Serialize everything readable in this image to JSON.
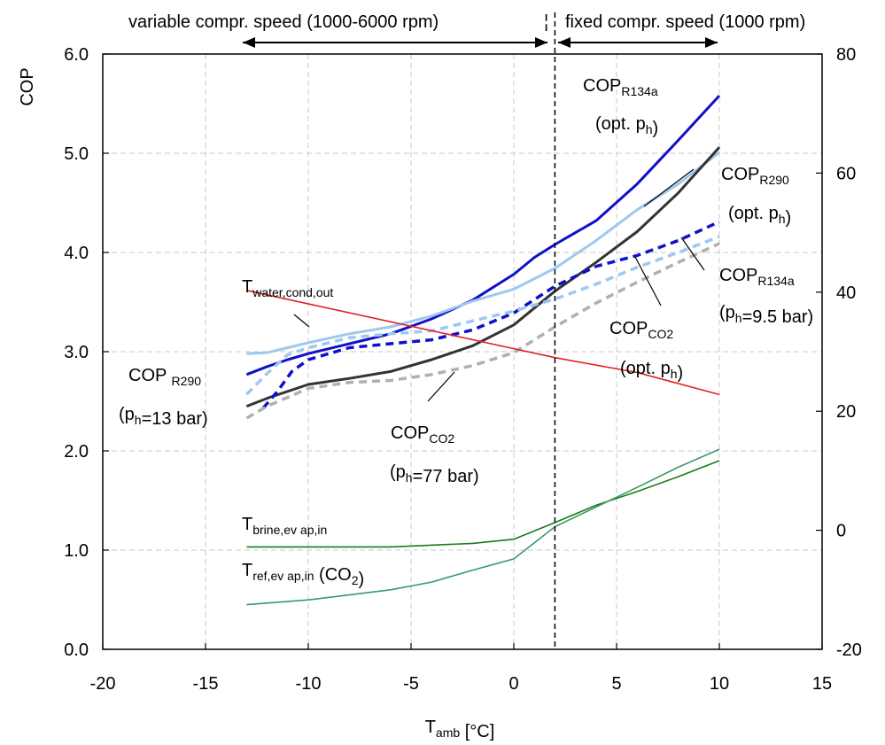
{
  "chart_data": {
    "type": "line",
    "title": "",
    "xlabel": "T",
    "xlabel_sub": "amb",
    "xlabel_unit": " [°C]",
    "ylabel": "COP",
    "y2label": "",
    "xlim": [
      -20,
      15
    ],
    "ylim": [
      0,
      6
    ],
    "y2lim": [
      -20,
      80
    ],
    "grid": true,
    "xticks": [
      "-20",
      "-15",
      "-10",
      "-5",
      "0",
      "5",
      "10",
      "15"
    ],
    "yticks": [
      "0.0",
      "1.0",
      "2.0",
      "3.0",
      "4.0",
      "5.0",
      "6.0"
    ],
    "y2ticks": [
      "-20",
      "0",
      "20",
      "40",
      "60",
      "80"
    ],
    "divider_x": 2,
    "regions": {
      "left": "variable compr. speed (1000-6000 rpm)",
      "separator": "¦",
      "right": "fixed compr. speed (1000 rpm)"
    },
    "series": [
      {
        "key": "r134a_opt",
        "axis": "left",
        "color": "#1010c8",
        "style": "solid",
        "x": [
          -13,
          -12,
          -11,
          -10,
          -8,
          -6,
          -4,
          -2,
          0,
          1,
          2,
          4,
          6,
          8,
          10
        ],
        "y": [
          2.77,
          2.85,
          2.92,
          2.98,
          3.08,
          3.18,
          3.33,
          3.52,
          3.78,
          3.95,
          4.08,
          4.32,
          4.69,
          5.13,
          5.58
        ]
      },
      {
        "key": "r290_opt",
        "axis": "left",
        "color": "#9ec8f0",
        "style": "solid",
        "x": [
          -13,
          -12,
          -11,
          -10,
          -8,
          -6,
          -4,
          -2,
          0,
          2,
          4,
          6,
          8,
          10
        ],
        "y": [
          2.98,
          2.99,
          3.04,
          3.09,
          3.18,
          3.25,
          3.36,
          3.51,
          3.63,
          3.84,
          4.12,
          4.43,
          4.69,
          5.01
        ]
      },
      {
        "key": "co2_opt",
        "axis": "left",
        "color": "#333333",
        "style": "solid",
        "x": [
          -13,
          -12,
          -10,
          -8,
          -6,
          -4,
          -2,
          0,
          2,
          4,
          6,
          8,
          10
        ],
        "y": [
          2.45,
          2.53,
          2.67,
          2.73,
          2.8,
          2.92,
          3.06,
          3.27,
          3.61,
          3.9,
          4.21,
          4.6,
          5.06
        ]
      },
      {
        "key": "r134a_fixed",
        "axis": "left",
        "color": "#1010c8",
        "style": "dashed",
        "x": [
          -12.2,
          -11.5,
          -10.8,
          -10,
          -8,
          -6,
          -4,
          -2,
          0,
          2,
          4,
          6,
          8,
          10
        ],
        "y": [
          2.43,
          2.6,
          2.8,
          2.92,
          3.04,
          3.08,
          3.12,
          3.22,
          3.39,
          3.66,
          3.86,
          3.97,
          4.12,
          4.31
        ]
      },
      {
        "key": "r290_fixed",
        "axis": "left",
        "color": "#9ec8f0",
        "style": "dashed",
        "x": [
          -13,
          -12,
          -11,
          -10,
          -8,
          -6,
          -4,
          -2,
          0,
          2,
          4,
          6,
          8,
          10
        ],
        "y": [
          2.57,
          2.78,
          2.97,
          3.04,
          3.14,
          3.18,
          3.21,
          3.31,
          3.41,
          3.53,
          3.68,
          3.85,
          4.0,
          4.16
        ]
      },
      {
        "key": "co2_fixed",
        "axis": "left",
        "color": "#b0b0b0",
        "style": "dashed",
        "x": [
          -13,
          -12,
          -10,
          -8,
          -6,
          -4,
          -2,
          0,
          2,
          4,
          6,
          8,
          10
        ],
        "y": [
          2.33,
          2.45,
          2.63,
          2.69,
          2.71,
          2.77,
          2.86,
          2.99,
          3.25,
          3.49,
          3.7,
          3.9,
          4.09
        ]
      },
      {
        "key": "t_water",
        "axis": "right",
        "color": "#e02020",
        "style": "solid",
        "x": [
          -13,
          0,
          2,
          6,
          10
        ],
        "y": [
          40.3,
          30.5,
          29.0,
          26.5,
          22.8
        ]
      },
      {
        "key": "t_brine",
        "axis": "right",
        "color": "#1a7a1a",
        "style": "solid",
        "x": [
          -13,
          -6,
          -2,
          0,
          2,
          4,
          6,
          8,
          10
        ],
        "y": [
          -2.8,
          -2.8,
          -2.2,
          -1.5,
          1.3,
          4.2,
          6.5,
          9.0,
          11.7
        ]
      },
      {
        "key": "t_ref",
        "axis": "right",
        "color": "#3a9a66",
        "style": "solid",
        "x": [
          -13,
          -10,
          -6,
          -4,
          -2,
          0,
          2,
          4,
          6,
          8,
          10
        ],
        "y": [
          -12.5,
          -11.7,
          -10.0,
          -8.7,
          -6.7,
          -4.8,
          0.6,
          3.9,
          7.2,
          10.6,
          13.6
        ]
      }
    ],
    "annotations": [
      {
        "key": "ann_cop_r134a_opt",
        "main": "COP",
        "sub": "R134a",
        "line2": "(opt. p",
        "line2_sub": "h",
        "line2_end": ")"
      },
      {
        "key": "ann_cop_r290_opt",
        "main": "COP",
        "sub": "R290",
        "line2": "(opt. p",
        "line2_sub": "h",
        "line2_end": ")"
      },
      {
        "key": "ann_cop_r134a_fixed",
        "main": "COP",
        "sub": "R134a",
        "line2": "(p",
        "line2_sub": "h",
        "line2_end": "=9.5 bar)"
      },
      {
        "key": "ann_cop_co2_opt",
        "main": "COP",
        "sub": "CO2",
        "line2": "(opt. p",
        "line2_sub": "h",
        "line2_end": ")"
      },
      {
        "key": "ann_cop_r290_fixed",
        "main": "COP ",
        "sub": "R290",
        "line2": "(p",
        "line2_sub": "h",
        "line2_end": "=13 bar)"
      },
      {
        "key": "ann_cop_co2_fixed",
        "main": "COP",
        "sub": "CO2",
        "line2": "(p",
        "line2_sub": "h",
        "line2_end": "=77 bar)"
      },
      {
        "key": "ann_t_water",
        "main": "T",
        "sub": "water,cond,out"
      },
      {
        "key": "ann_t_brine",
        "main": "T",
        "sub": "brine,ev ap,in"
      },
      {
        "key": "ann_t_ref",
        "main": "T",
        "sub": "ref,ev ap,in",
        "tail": " (CO",
        "tail_sub": "2",
        "tail_end": ")"
      }
    ]
  }
}
